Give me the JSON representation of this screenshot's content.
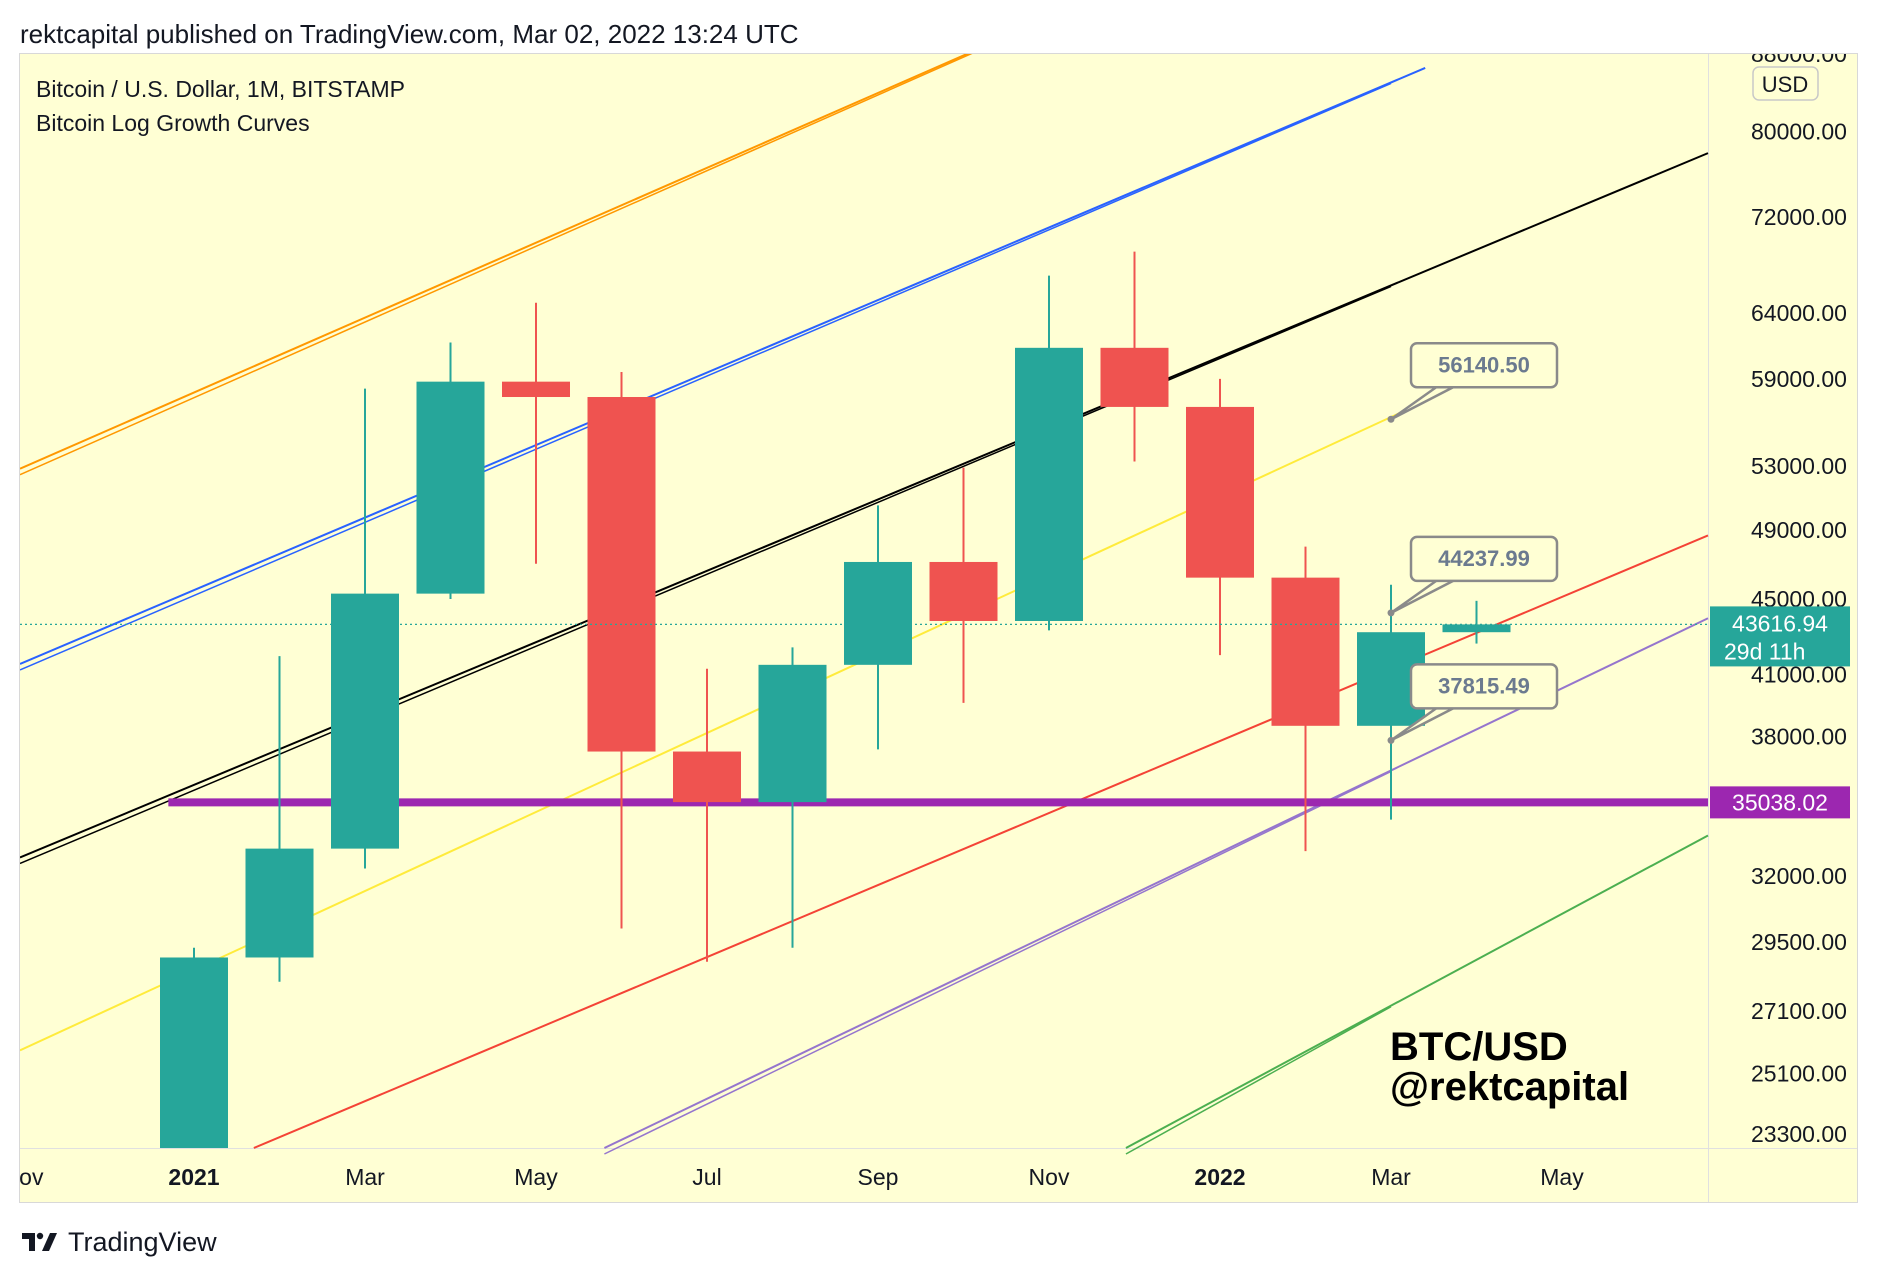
{
  "header": {
    "publish_line": "rektcapital published on TradingView.com, Mar 02, 2022 13:24 UTC"
  },
  "legend": {
    "line1": "Bitcoin / U.S. Dollar, 1M, BITSTAMP",
    "line2": "Bitcoin Log Growth Curves"
  },
  "currency_badge": "USD",
  "watermark": {
    "line1": "BTC/USD",
    "line2": "@rektcapital"
  },
  "footer": {
    "brand": "TradingView"
  },
  "colors": {
    "background": "#FFFFD4",
    "bull": "#26A69A",
    "bear": "#EF5350",
    "support": "#9C27B0",
    "curve_orange": "#FF9800",
    "curve_blue": "#2962FF",
    "curve_black": "#000000",
    "curve_yellow": "#FFEB3B",
    "curve_red": "#F44336",
    "curve_purple": "#9575CD",
    "curve_green": "#4CAF50",
    "callout_border": "#8A8A8A",
    "callout_text": "#6B7A8F"
  },
  "chart_data": {
    "type": "candlestick",
    "title": "Bitcoin / U.S. Dollar, 1M, BITSTAMP",
    "indicator": "Bitcoin Log Growth Curves",
    "scale": "log",
    "xlabel": "",
    "ylabel": "",
    "ylim": [
      22900,
      88000
    ],
    "x_tick_labels": [
      "Nov",
      "2021",
      "Mar",
      "May",
      "Jul",
      "Sep",
      "Nov",
      "2022",
      "Mar",
      "May"
    ],
    "x_tick_at_index": [
      -2,
      0,
      2,
      4,
      6,
      8,
      10,
      12,
      14,
      16
    ],
    "y_tick_labels": [
      "88000.00",
      "80000.00",
      "72000.00",
      "64000.00",
      "59000.00",
      "53000.00",
      "49000.00",
      "45000.00",
      "41000.00",
      "38000.00",
      "32000.00",
      "29500.00",
      "27100.00",
      "25100.00",
      "23300.00"
    ],
    "candles": [
      {
        "month": "Dec 2020",
        "open": 19700,
        "high": 29300,
        "low": 19000,
        "close": 28950
      },
      {
        "month": "Jan 2021",
        "open": 28950,
        "high": 41950,
        "low": 28100,
        "close": 33100
      },
      {
        "month": "Feb 2021",
        "open": 33100,
        "high": 58300,
        "low": 32300,
        "close": 45300
      },
      {
        "month": "Mar 2021",
        "open": 45300,
        "high": 61700,
        "low": 45000,
        "close": 58800
      },
      {
        "month": "Apr 2021",
        "open": 58800,
        "high": 64800,
        "low": 47000,
        "close": 57700
      },
      {
        "month": "May 2021",
        "open": 57700,
        "high": 59500,
        "low": 30000,
        "close": 37300
      },
      {
        "month": "Jun 2021",
        "open": 37300,
        "high": 41300,
        "low": 28800,
        "close": 35050
      },
      {
        "month": "Jul 2021",
        "open": 35050,
        "high": 42400,
        "low": 29300,
        "close": 41500
      },
      {
        "month": "Aug 2021",
        "open": 41500,
        "high": 50500,
        "low": 37400,
        "close": 47100
      },
      {
        "month": "Sep 2021",
        "open": 47100,
        "high": 52900,
        "low": 39600,
        "close": 43800
      },
      {
        "month": "Oct 2021",
        "open": 43800,
        "high": 67000,
        "low": 43300,
        "close": 61300
      },
      {
        "month": "Nov 2021",
        "open": 61300,
        "high": 69000,
        "low": 53300,
        "close": 57000
      },
      {
        "month": "Dec 2021",
        "open": 57000,
        "high": 59000,
        "low": 42000,
        "close": 46200
      },
      {
        "month": "Jan 2022",
        "open": 46200,
        "high": 48000,
        "low": 33000,
        "close": 38500
      },
      {
        "month": "Feb 2022",
        "open": 38500,
        "high": 45800,
        "low": 34300,
        "close": 43200
      },
      {
        "month": "Mar 2022",
        "open": 43200,
        "high": 44900,
        "low": 42600,
        "close": 43616.94
      }
    ],
    "horizontal_levels": [
      {
        "value": 35038.02,
        "label": "35038.02",
        "color": "#9C27B0"
      }
    ],
    "last_price": {
      "value": 43616.94,
      "label": "43616.94",
      "countdown": "29d 11h"
    },
    "growth_curves": [
      {
        "color": "#FF9800",
        "double": true,
        "start": {
          "i": -3.8,
          "v": 48700
        },
        "end": {
          "i": 10.7,
          "v": 95000
        }
      },
      {
        "color": "#2962FF",
        "double": true,
        "start": {
          "i": -3.8,
          "v": 38400
        },
        "end": {
          "i": 14.4,
          "v": 86500
        }
      },
      {
        "color": "#000000",
        "double": true,
        "start": {
          "i": -3.8,
          "v": 30300
        },
        "end": {
          "i": 18.0,
          "v": 78900
        }
      },
      {
        "color": "#FFEB3B",
        "double": false,
        "start": {
          "i": -3.8,
          "v": 23700
        },
        "end": {
          "i": 14.4,
          "v": 57400
        }
      },
      {
        "color": "#F44336",
        "double": false,
        "start": {
          "i": 0.7,
          "v": 22900
        },
        "end": {
          "i": 18.0,
          "v": 49300
        }
      },
      {
        "color": "#9575CD",
        "double": true,
        "start": {
          "i": 4.8,
          "v": 22900
        },
        "end": {
          "i": 18.0,
          "v": 44600
        }
      },
      {
        "color": "#4CAF50",
        "double": true,
        "start": {
          "i": 10.9,
          "v": 22900
        },
        "end": {
          "i": 18.0,
          "v": 34200
        }
      }
    ],
    "callouts": [
      {
        "label": "56140.50",
        "value": 56140.5,
        "i": 14
      },
      {
        "label": "44237.99",
        "value": 44237.99,
        "i": 14
      },
      {
        "label": "37815.49",
        "value": 37815.49,
        "i": 14
      }
    ]
  }
}
